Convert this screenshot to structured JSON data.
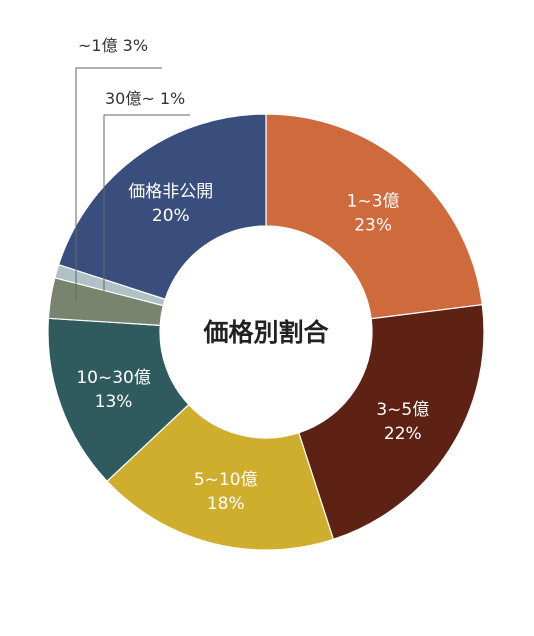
{
  "chart_data": {
    "type": "pie",
    "title": "価格別割合",
    "categories": [
      "1~3億",
      "3~5億",
      "5~10億",
      "10~30億",
      "~1億",
      "30億~",
      "価格非公開"
    ],
    "values": [
      23,
      22,
      18,
      13,
      3,
      1,
      20
    ],
    "percent_labels": [
      "23%",
      "22%",
      "18%",
      "13%",
      "3%",
      "1%",
      "20%"
    ],
    "colors": [
      "#CF6A3C",
      "#5E2214",
      "#CFAE2D",
      "#2F5B5F",
      "#78846E",
      "#AFC2C5",
      "#3A4E7E"
    ],
    "callouts": [
      "~1億 3%",
      "30億~ 1%"
    ],
    "legend": "none"
  }
}
